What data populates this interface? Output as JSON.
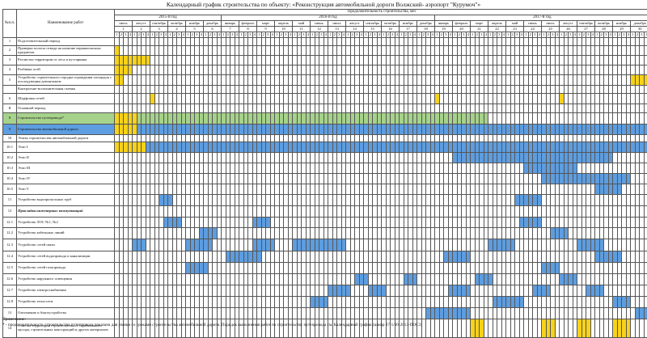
{
  "page_title": "Календарный график строительства по объекту: «Реконструкция автомобильной дороги Волжский- аэропорт \"Курумоч\"»",
  "table": {
    "head_num": "№п.п.",
    "head_name": "Наименование работ",
    "head_duration": "Продолжительность строительства, мес",
    "years": [
      {
        "label": "2015-й год",
        "span": 6
      },
      {
        "label": "2016-й год",
        "span": 12
      },
      {
        "label": "2017-й год",
        "span": 12
      }
    ],
    "months": [
      "июль",
      "август",
      "сентябрь",
      "октябрь",
      "ноябрь",
      "декабрь",
      "январь",
      "февраль",
      "март",
      "апрель",
      "май",
      "июнь",
      "июль",
      "август",
      "сентябрь",
      "октябрь",
      "ноябрь",
      "декабрь",
      "январь",
      "февраль",
      "март",
      "апрель",
      "май",
      "июнь",
      "июль",
      "август",
      "сентябрь",
      "октябрь",
      "ноябрь",
      "декабрь"
    ],
    "month_numbers": [
      "1",
      "2",
      "3",
      "4",
      "5",
      "6",
      "7",
      "8",
      "9",
      "10",
      "11",
      "12",
      "13",
      "14",
      "15",
      "16",
      "17",
      "18",
      "19",
      "20",
      "21",
      "22",
      "23",
      "24",
      "25",
      "26",
      "27",
      "28",
      "29",
      "30"
    ],
    "week_numbers": [
      "1",
      "2",
      "3",
      "4"
    ],
    "rows": [
      {
        "num": "1",
        "name": "Подготовительный период",
        "cells": []
      },
      {
        "num": "2",
        "name": "Проверка полосы отвода на наличие взрывоопасных предметов",
        "cells": [
          [
            0,
            1,
            "y"
          ]
        ]
      },
      {
        "num": "3",
        "name": "Расчистка территории от леса и кустарника",
        "cells": [
          [
            0,
            8,
            "y"
          ]
        ]
      },
      {
        "num": "4",
        "name": "Разбивка осей",
        "cells": [
          [
            0,
            4,
            "y"
          ]
        ]
      },
      {
        "num": "5",
        "name": "Устройство строительного городка ограждения площадок с последующим демонтажем",
        "cells": [
          [
            0,
            2,
            "y"
          ],
          [
            116,
            120,
            "y"
          ]
        ]
      },
      {
        "num": "",
        "name": "Контрольно-исполнительная съемка",
        "cells": []
      },
      {
        "num": "6",
        "name": "Шурфовка сетей",
        "cells": [
          [
            8,
            9,
            "y"
          ],
          [
            72,
            73,
            "y"
          ],
          [
            100,
            101,
            "y"
          ]
        ]
      },
      {
        "num": "II",
        "name": "Основной период",
        "cells": []
      },
      {
        "num": "8",
        "name": "Строительство путепровода*",
        "row_class": "g",
        "cells": [
          [
            0,
            5,
            "y"
          ],
          [
            5,
            84,
            "g"
          ]
        ]
      },
      {
        "num": "9",
        "name": "Строительство автомобильной дороги",
        "row_class": "b",
        "cells": [
          [
            0,
            5,
            "y"
          ],
          [
            5,
            120,
            "b"
          ]
        ]
      },
      {
        "num": "10",
        "name": "Этапы строительства автомобильной дороги",
        "cells": []
      },
      {
        "num": "10.1",
        "name": "Этап I",
        "cells": [
          [
            0,
            7,
            "y"
          ],
          [
            7,
            120,
            "b"
          ]
        ]
      },
      {
        "num": "10.2",
        "name": "Этап II",
        "cells": [
          [
            76,
            112,
            "b"
          ]
        ]
      },
      {
        "num": "10.3",
        "name": "Этап III",
        "cells": [
          [
            92,
            104,
            "b"
          ]
        ]
      },
      {
        "num": "10.4",
        "name": "Этап IV",
        "cells": [
          [
            96,
            116,
            "b"
          ]
        ]
      },
      {
        "num": "10.5",
        "name": "Этап V",
        "cells": [
          [
            108,
            114,
            "b"
          ]
        ]
      },
      {
        "num": "11",
        "name": "Устройство водопропускных труб",
        "cells": [
          [
            10,
            13,
            "b"
          ],
          [
            90,
            96,
            "b"
          ]
        ]
      },
      {
        "num": "12",
        "name": "Прокладка инженерных коммуникаций",
        "italic": true,
        "cells": []
      },
      {
        "num": "12.1",
        "name": "Устройство ЛОС №1, №2",
        "cells": [
          [
            11,
            15,
            "b"
          ],
          [
            31,
            35,
            "b"
          ],
          [
            91,
            96,
            "b"
          ]
        ]
      },
      {
        "num": "12.2",
        "name": "Устройство кабельных линий",
        "cells": [
          [
            19,
            23,
            "b"
          ],
          [
            98,
            102,
            "b"
          ]
        ]
      },
      {
        "num": "12.3",
        "name": "Устройство сетей связи",
        "cells": [
          [
            4,
            7,
            "b"
          ],
          [
            16,
            22,
            "b"
          ],
          [
            31,
            36,
            "b"
          ],
          [
            40,
            52,
            "b"
          ],
          [
            84,
            90,
            "b"
          ],
          [
            104,
            110,
            "b"
          ]
        ]
      },
      {
        "num": "12.4",
        "name": "Устройство сетей водопровода и канализации",
        "cells": [
          [
            25,
            33,
            "b"
          ],
          [
            74,
            80,
            "b"
          ],
          [
            108,
            114,
            "b"
          ]
        ]
      },
      {
        "num": "12.5",
        "name": "Устройство сетей газопровода",
        "cells": [
          [
            16,
            21,
            "b"
          ],
          [
            96,
            100,
            "b"
          ]
        ]
      },
      {
        "num": "12.6",
        "name": "Устройство наружного освещения",
        "cells": [
          [
            54,
            57,
            "b"
          ],
          [
            65,
            68,
            "b"
          ],
          [
            81,
            85,
            "b"
          ],
          [
            100,
            104,
            "b"
          ]
        ]
      },
      {
        "num": "12.7",
        "name": "Устройство электроснабжения",
        "cells": [
          [
            48,
            53,
            "b"
          ],
          [
            57,
            61,
            "b"
          ],
          [
            75,
            80,
            "b"
          ],
          [
            94,
            98,
            "b"
          ],
          [
            106,
            110,
            "b"
          ]
        ]
      },
      {
        "num": "12.8",
        "name": "Устройство теплосети",
        "cells": [
          [
            44,
            48,
            "b"
          ],
          [
            85,
            92,
            "b"
          ],
          [
            112,
            116,
            "b"
          ]
        ]
      },
      {
        "num": "13",
        "name": "Озеленение и благоустройство",
        "cells": [
          [
            70,
            80,
            "b"
          ],
          [
            117,
            120,
            "b"
          ]
        ]
      },
      {
        "num": "14",
        "name": "Очистка территории строительства от строительного мусора, строительных конструкций и других материалов",
        "cells": [
          [
            80,
            83,
            "y"
          ],
          [
            96,
            99,
            "y"
          ],
          [
            104,
            107,
            "y"
          ],
          [
            112,
            116,
            "y"
          ]
        ]
      }
    ]
  },
  "notes": {
    "label": "Примечание:",
    "text": "* - продолжительность строительства путепровода показана для увязки со сроками строительства автомобильной дороги. Порядок выполнения работ по строительству путепровода см. Календарный график (шифр 67-1/30-2013-ПОС3)"
  },
  "colors": {
    "yellow": "#f7d21a",
    "blue": "#5d9de0",
    "green": "#a6d28b"
  }
}
